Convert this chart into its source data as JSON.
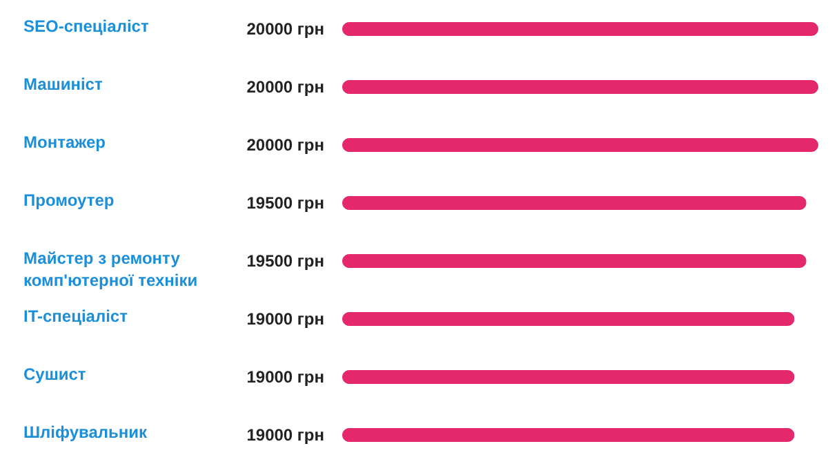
{
  "chart_data": {
    "type": "bar",
    "orientation": "horizontal",
    "categories": [
      "SEO-спеціаліст",
      "Машиніст",
      "Монтажер",
      "Промоутер",
      "Майстер з ремонту комп'ютерної техніки",
      "IT-спеціаліст",
      "Сушист",
      "Шліфувальник"
    ],
    "values": [
      20000,
      20000,
      20000,
      19500,
      19500,
      19000,
      19000,
      19000
    ],
    "value_labels": [
      "20000 грн",
      "20000 грн",
      "20000 грн",
      "19500 грн",
      "19500 грн",
      "19000 грн",
      "19000 грн",
      "19000 грн"
    ],
    "color": "#e5286c"
  }
}
